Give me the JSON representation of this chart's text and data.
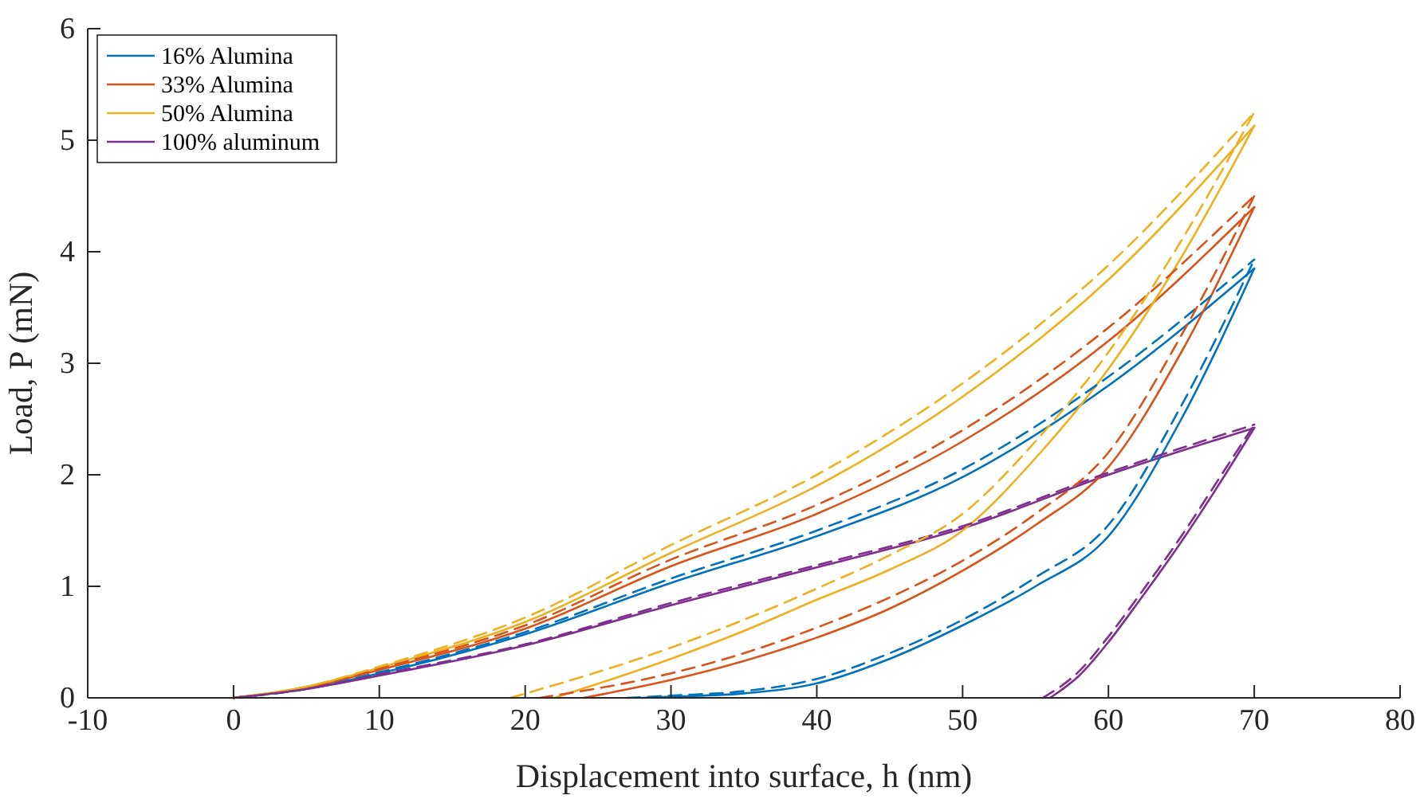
{
  "chart_data": {
    "type": "line",
    "xlabel": "Displacement into surface, h (nm)",
    "ylabel": "Load, P (mN)",
    "xlim": [
      -10,
      80
    ],
    "xticks": [
      -10,
      0,
      10,
      20,
      30,
      40,
      50,
      60,
      70,
      80
    ],
    "ylim": [
      0,
      6
    ],
    "yticks": [
      0,
      1,
      2,
      3,
      4,
      5,
      6
    ],
    "grid": false,
    "legend": "top left",
    "series": [
      {
        "name": "16% Alumina",
        "color": "#0072bd",
        "line_style": "solid",
        "x": [
          0,
          5,
          10,
          20,
          30,
          40,
          50,
          60,
          70
        ],
        "values": [
          0,
          0.08,
          0.22,
          0.57,
          1.03,
          1.45,
          1.98,
          2.8,
          3.85
        ]
      },
      {
        "name": "33% Alumina",
        "color": "#d95319",
        "line_style": "solid",
        "x": [
          0,
          5,
          10,
          20,
          30,
          40,
          50,
          60,
          70
        ],
        "values": [
          0,
          0.09,
          0.25,
          0.62,
          1.18,
          1.65,
          2.3,
          3.2,
          4.4
        ]
      },
      {
        "name": "50% Alumina",
        "color": "#edb120",
        "line_style": "solid",
        "x": [
          0,
          5,
          10,
          20,
          30,
          40,
          50,
          60,
          70
        ],
        "values": [
          0,
          0.1,
          0.27,
          0.68,
          1.3,
          1.9,
          2.7,
          3.75,
          5.13
        ]
      },
      {
        "name": "100% aluminum",
        "color": "#7e2f8e",
        "line_style": "solid",
        "x": [
          0,
          5,
          10,
          20,
          30,
          40,
          50,
          60,
          70
        ],
        "values": [
          0,
          0.08,
          0.2,
          0.47,
          0.83,
          1.17,
          1.52,
          2.0,
          2.42
        ]
      },
      {
        "color": "#0072bd",
        "line_style": "solid",
        "x": [
          28,
          30,
          35,
          40,
          45,
          50,
          55,
          60,
          65,
          70
        ],
        "values": [
          0,
          0.01,
          0.04,
          0.13,
          0.35,
          0.65,
          1.0,
          1.45,
          2.5,
          3.85
        ]
      },
      {
        "color": "#d95319",
        "line_style": "solid",
        "x": [
          24,
          30,
          35,
          40,
          45,
          50,
          55,
          60,
          65,
          70
        ],
        "values": [
          0,
          0.16,
          0.33,
          0.54,
          0.8,
          1.14,
          1.55,
          2.07,
          3.1,
          4.4
        ]
      },
      {
        "color": "#edb120",
        "line_style": "solid",
        "x": [
          22,
          30,
          35,
          40,
          45,
          50,
          55,
          60,
          65,
          70
        ],
        "values": [
          0,
          0.35,
          0.6,
          0.88,
          1.15,
          1.5,
          2.15,
          2.95,
          3.95,
          5.13
        ]
      },
      {
        "color": "#7e2f8e",
        "line_style": "solid",
        "x": [
          56,
          58,
          60,
          62,
          65,
          68,
          70
        ],
        "values": [
          0,
          0.2,
          0.5,
          0.85,
          1.4,
          2.0,
          2.42
        ]
      },
      {
        "color": "#0072bd",
        "line_style": "dashed",
        "x": [
          0,
          5,
          10,
          20,
          30,
          40,
          50,
          60,
          70
        ],
        "values": [
          0,
          0.08,
          0.23,
          0.59,
          1.07,
          1.5,
          2.05,
          2.88,
          3.93
        ]
      },
      {
        "color": "#d95319",
        "line_style": "dashed",
        "x": [
          0,
          5,
          10,
          20,
          30,
          40,
          50,
          60,
          70
        ],
        "values": [
          0,
          0.09,
          0.26,
          0.65,
          1.24,
          1.73,
          2.4,
          3.32,
          4.5
        ]
      },
      {
        "color": "#edb120",
        "line_style": "dashed",
        "x": [
          0,
          5,
          10,
          20,
          30,
          40,
          50,
          60,
          70
        ],
        "values": [
          0,
          0.1,
          0.28,
          0.72,
          1.37,
          2.0,
          2.82,
          3.88,
          5.25
        ]
      },
      {
        "color": "#7e2f8e",
        "line_style": "dashed",
        "x": [
          0,
          5,
          10,
          20,
          30,
          40,
          50,
          60,
          70
        ],
        "values": [
          0,
          0.08,
          0.21,
          0.48,
          0.85,
          1.19,
          1.54,
          2.02,
          2.45
        ]
      },
      {
        "color": "#0072bd",
        "line_style": "dashed",
        "x": [
          27,
          30,
          35,
          40,
          45,
          50,
          55,
          60,
          65,
          70
        ],
        "values": [
          0,
          0.02,
          0.06,
          0.17,
          0.4,
          0.7,
          1.08,
          1.55,
          2.62,
          3.93
        ]
      },
      {
        "color": "#d95319",
        "line_style": "dashed",
        "x": [
          21,
          30,
          35,
          40,
          45,
          50,
          55,
          60,
          65,
          70
        ],
        "values": [
          0,
          0.22,
          0.4,
          0.63,
          0.9,
          1.23,
          1.65,
          2.2,
          3.25,
          4.5
        ]
      },
      {
        "color": "#edb120",
        "line_style": "dashed",
        "x": [
          19,
          30,
          35,
          40,
          45,
          50,
          55,
          60,
          65,
          70
        ],
        "values": [
          0,
          0.45,
          0.7,
          0.98,
          1.28,
          1.65,
          2.3,
          3.1,
          4.1,
          5.25
        ]
      },
      {
        "color": "#7e2f8e",
        "line_style": "dashed",
        "x": [
          55.5,
          58,
          60,
          62,
          65,
          68,
          70
        ],
        "values": [
          0,
          0.24,
          0.55,
          0.9,
          1.45,
          2.05,
          2.45
        ]
      }
    ]
  }
}
